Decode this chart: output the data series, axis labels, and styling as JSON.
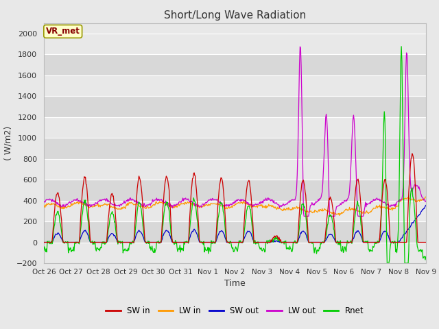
{
  "title": "Short/Long Wave Radiation",
  "xlabel": "Time",
  "ylabel": "( W/m2)",
  "ylim": [
    -200,
    2100
  ],
  "yticks": [
    -200,
    0,
    200,
    400,
    600,
    800,
    1000,
    1200,
    1400,
    1600,
    1800,
    2000
  ],
  "x_labels": [
    "Oct 26",
    "Oct 27",
    "Oct 28",
    "Oct 29",
    "Oct 30",
    "Oct 31",
    "Nov 1",
    "Nov 2",
    "Nov 3",
    "Nov 4",
    "Nov 5",
    "Nov 6",
    "Nov 7",
    "Nov 8",
    "Nov 9"
  ],
  "legend_labels": [
    "SW in",
    "LW in",
    "SW out",
    "LW out",
    "Rnet"
  ],
  "colors": {
    "SW_in": "#cc0000",
    "LW_in": "#ff9900",
    "SW_out": "#0000cc",
    "LW_out": "#cc00cc",
    "Rnet": "#00cc00"
  },
  "annotation_text": "VR_met",
  "bg_color": "#e8e8e8",
  "plot_bg_light": "#e8e8e8",
  "plot_bg_dark": "#d8d8d8",
  "band_colors": [
    "#e8e8e8",
    "#d8d8d8"
  ]
}
